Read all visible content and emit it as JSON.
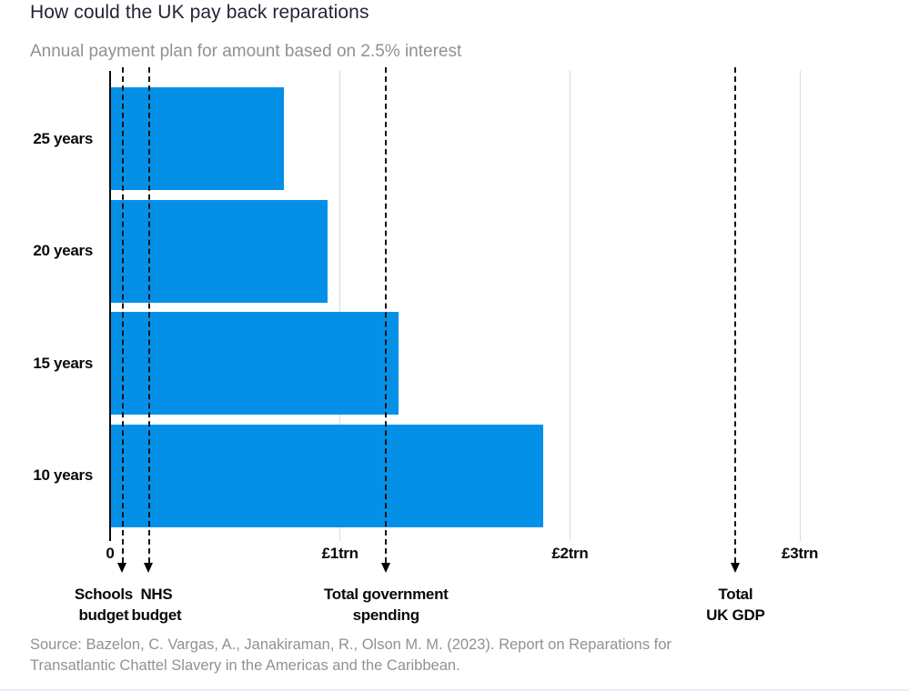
{
  "header": {
    "title": "How could the UK pay back reparations",
    "subtitle": "Annual payment plan for amount based on 2.5% interest"
  },
  "chart_data": {
    "type": "bar",
    "orientation": "horizontal",
    "title": "How could the UK pay back reparations",
    "subtitle": "Annual payment plan for amount based on 2.5% interest",
    "categories": [
      "25 years",
      "20 years",
      "15 years",
      "10 years"
    ],
    "values": [
      0.75,
      0.94,
      1.25,
      1.88
    ],
    "unit": "trillion GBP per year",
    "xlabel": "",
    "ylabel": "",
    "xlim": [
      0,
      3.35
    ],
    "grid": "vertical-light",
    "bar_color": "#0590e8",
    "x_ticks": [
      {
        "value": 0,
        "label": "0"
      },
      {
        "value": 1,
        "label": "£1trn"
      },
      {
        "value": 2,
        "label": "£2trn"
      },
      {
        "value": 3,
        "label": "£3trn"
      }
    ],
    "reference_lines": [
      {
        "value": 0.055,
        "lines": [
          "Schools",
          "budget"
        ],
        "label_dx": -21
      },
      {
        "value": 0.17,
        "lines": [
          "NHS",
          "budget"
        ],
        "label_dx": 8
      },
      {
        "value": 1.2,
        "lines": [
          "Total government",
          "spending"
        ],
        "label_dx": 0
      },
      {
        "value": 2.72,
        "lines": [
          "Total",
          "UK GDP"
        ],
        "label_dx": 0
      }
    ]
  },
  "source": {
    "line1": "Source: Bazelon, C. Vargas, A., Janakiraman, R., Olson M. M. (2023). Report on Reparations for",
    "line2": "Transatlantic Chattel Slavery in the Americas and the Caribbean."
  }
}
